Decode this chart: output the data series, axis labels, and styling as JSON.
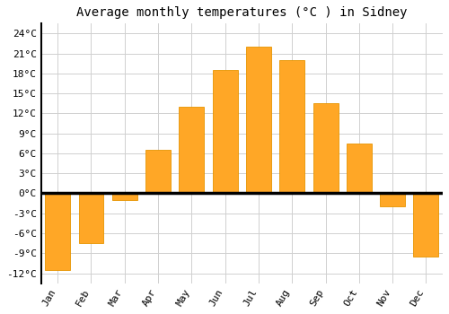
{
  "title": "Average monthly temperatures (°C ) in Sidney",
  "months": [
    "Jan",
    "Feb",
    "Mar",
    "Apr",
    "May",
    "Jun",
    "Jul",
    "Aug",
    "Sep",
    "Oct",
    "Nov",
    "Dec"
  ],
  "values": [
    -11.5,
    -7.5,
    -1.0,
    6.5,
    13.0,
    18.5,
    22.0,
    20.0,
    13.5,
    7.5,
    -2.0,
    -9.5
  ],
  "bar_color": "#FFA726",
  "bar_edge_color": "#E69500",
  "background_color": "#ffffff",
  "grid_color": "#d0d0d0",
  "yticks": [
    -12,
    -9,
    -6,
    -3,
    0,
    3,
    6,
    9,
    12,
    15,
    18,
    21,
    24
  ],
  "ylim": [
    -13.5,
    25.5
  ],
  "title_fontsize": 10,
  "tick_fontsize": 8,
  "font_family": "monospace",
  "bar_width": 0.75
}
